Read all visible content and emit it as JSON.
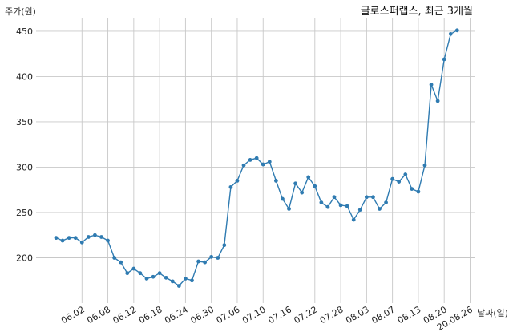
{
  "chart_data": {
    "type": "line",
    "title": "글로스퍼랩스, 최근 3개월",
    "ylabel": "주가(원)",
    "xlabel": "날짜(일)",
    "ylim": [
      150,
      465
    ],
    "yticks": [
      200,
      250,
      300,
      350,
      400,
      450
    ],
    "grid": true,
    "line_color": "#2f7bb1",
    "x_tick_labels": [
      {
        "index": 4,
        "label": "06.02"
      },
      {
        "index": 8,
        "label": "06.08"
      },
      {
        "index": 12,
        "label": "06.12"
      },
      {
        "index": 16,
        "label": "06.18"
      },
      {
        "index": 20,
        "label": "06.24"
      },
      {
        "index": 24,
        "label": "06.30"
      },
      {
        "index": 28,
        "label": "07.06"
      },
      {
        "index": 32,
        "label": "07.10"
      },
      {
        "index": 36,
        "label": "07.16"
      },
      {
        "index": 40,
        "label": "07.22"
      },
      {
        "index": 44,
        "label": "07.28"
      },
      {
        "index": 48,
        "label": "08.03"
      },
      {
        "index": 52,
        "label": "08.07"
      },
      {
        "index": 56,
        "label": "08.13"
      },
      {
        "index": 60,
        "label": "08.20"
      },
      {
        "index": 64,
        "label": "20.08.26"
      }
    ],
    "series": [
      {
        "values": [
          222,
          219,
          222,
          222,
          217,
          223,
          225,
          223,
          219,
          200,
          195,
          183,
          188,
          183,
          177,
          179,
          183,
          178,
          174,
          169,
          177,
          175,
          196,
          195,
          201,
          200,
          214,
          278,
          285,
          302,
          308,
          310,
          303,
          306,
          285,
          265,
          254,
          282,
          272,
          289,
          279,
          261,
          256,
          267,
          258,
          257,
          242,
          253,
          267,
          267,
          254,
          261,
          287,
          284,
          292,
          276,
          273,
          302,
          391,
          373,
          419,
          447,
          451
        ]
      }
    ]
  }
}
